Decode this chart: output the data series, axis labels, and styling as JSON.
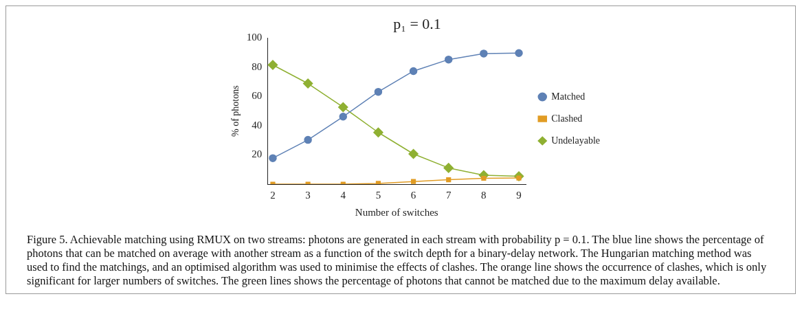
{
  "chart_data": {
    "type": "line",
    "title": "p₁ = 0.1",
    "xlabel": "Number of switches",
    "ylabel": "% of photons",
    "x": [
      2,
      3,
      4,
      5,
      6,
      7,
      8,
      9
    ],
    "xlim": [
      1.85,
      9.2
    ],
    "xticks": [
      2,
      3,
      4,
      5,
      6,
      7,
      8,
      9
    ],
    "ylim": [
      0,
      100
    ],
    "yticks": [
      20,
      40,
      60,
      80,
      100
    ],
    "grid": false,
    "legend": "right",
    "series": [
      {
        "name": "Matched",
        "color": "#5e81b5",
        "marker": "circle",
        "values": [
          17.8,
          30.3,
          46.2,
          63.2,
          77.4,
          85.3,
          89.4,
          89.7
        ]
      },
      {
        "name": "Clashed",
        "color": "#e19c24",
        "marker": "square",
        "values": [
          0,
          0,
          0,
          0.5,
          1.8,
          3.0,
          4.0,
          4.2
        ]
      },
      {
        "name": "Undelayable",
        "color": "#8fb032",
        "marker": "diamond",
        "values": [
          81.6,
          68.9,
          52.7,
          35.4,
          20.7,
          11.1,
          6.1,
          5.4
        ]
      }
    ],
    "annotations": [
      "Figure 5. Achievable matching using RMUX on two streams: photons are generated in each stream with probability p = 0.1. The blue line shows the percentage of photons that can be matched on average with another stream as a function of the switch depth for a binary-delay network. The Hungarian matching method was used to find the matchings, and an optimised algorithm was used to minimise the effects of clashes. The orange line shows the occurrence of clashes, which is only significant for larger numbers of switches. The green lines shows the percentage of photons that cannot be matched due to the maximum delay available."
    ]
  }
}
